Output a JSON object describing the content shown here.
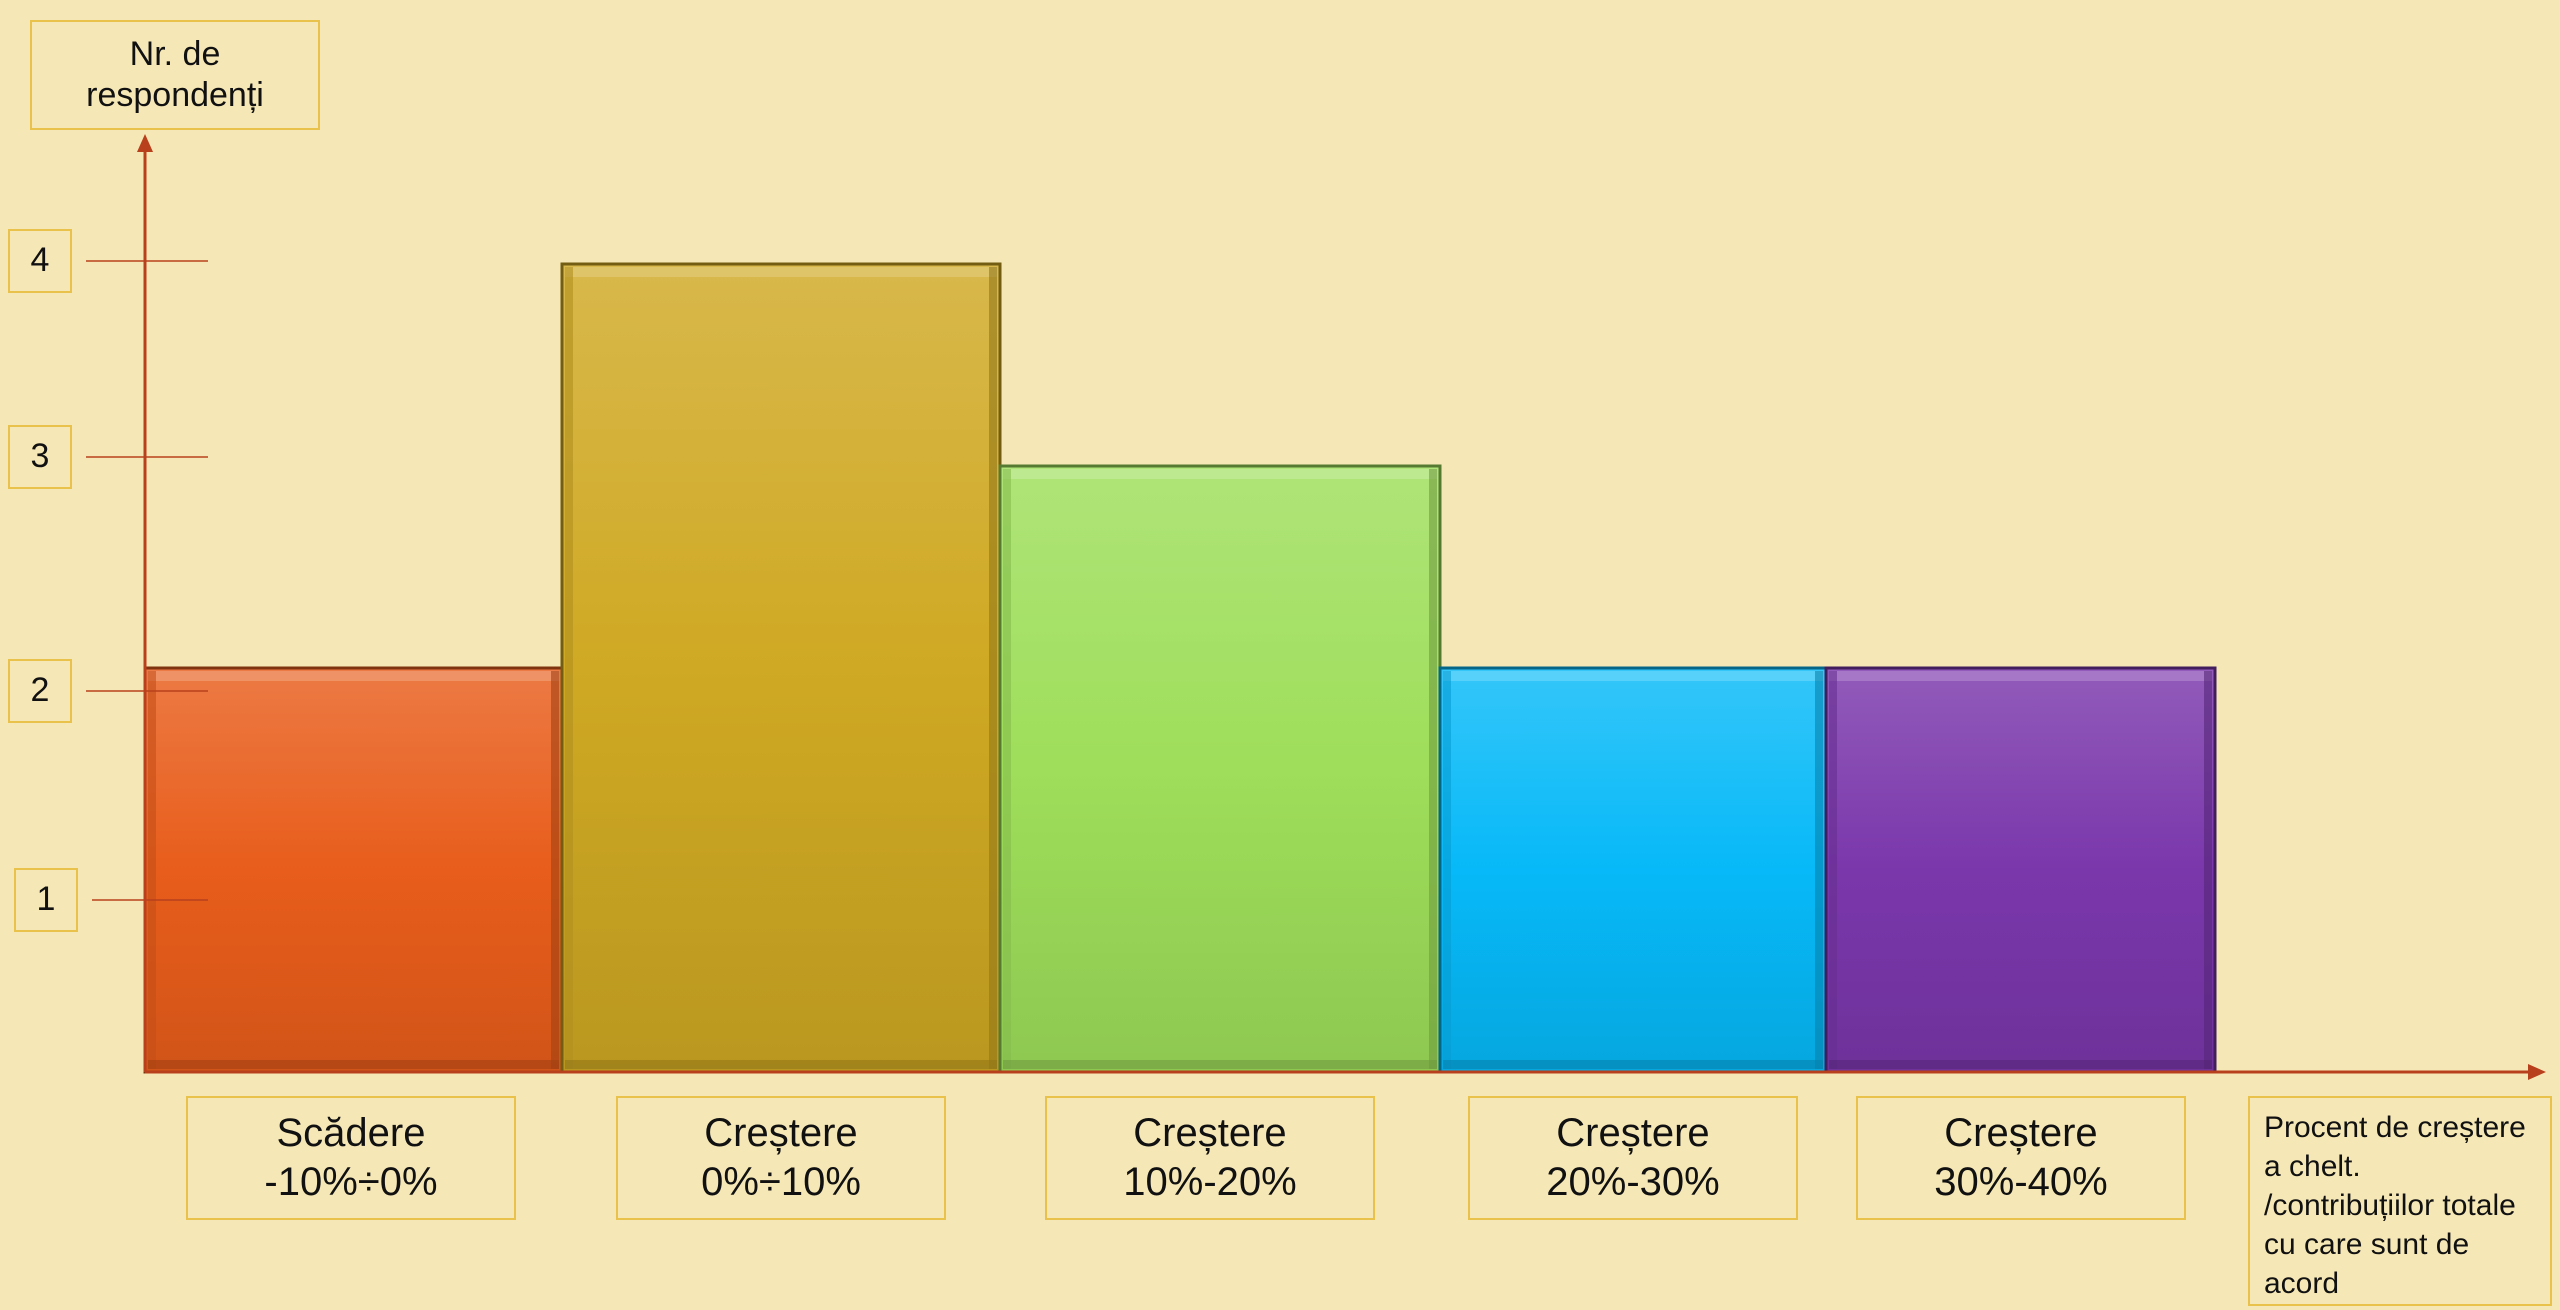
{
  "chart_data": {
    "type": "bar",
    "ylabel": "Nr. de respondenți",
    "xlabel": "Procent de creștere a chelt. /contribuțiilor totale cu care sunt de acord",
    "yticks": [
      1,
      2,
      3,
      4
    ],
    "ylim": [
      0,
      4.3
    ],
    "grid": false,
    "categories": [
      "Scădere -10%÷0%",
      "Creștere 0%÷10%",
      "Creștere 10%-20%",
      "Creștere 20%-30%",
      "Creștere 30%-40%"
    ],
    "category_lines": [
      [
        "Scădere",
        "-10%÷0%"
      ],
      [
        "Creștere",
        "0%÷10%"
      ],
      [
        "Creștere",
        "10%-20%"
      ],
      [
        "Creștere",
        "20%-30%"
      ],
      [
        "Creștere",
        "30%-40%"
      ]
    ],
    "values": [
      2,
      4,
      3,
      2,
      2
    ],
    "colors": [
      "#e85d1b",
      "#cfa923",
      "#9ede5a",
      "#07b9f8",
      "#7a37ab"
    ]
  }
}
